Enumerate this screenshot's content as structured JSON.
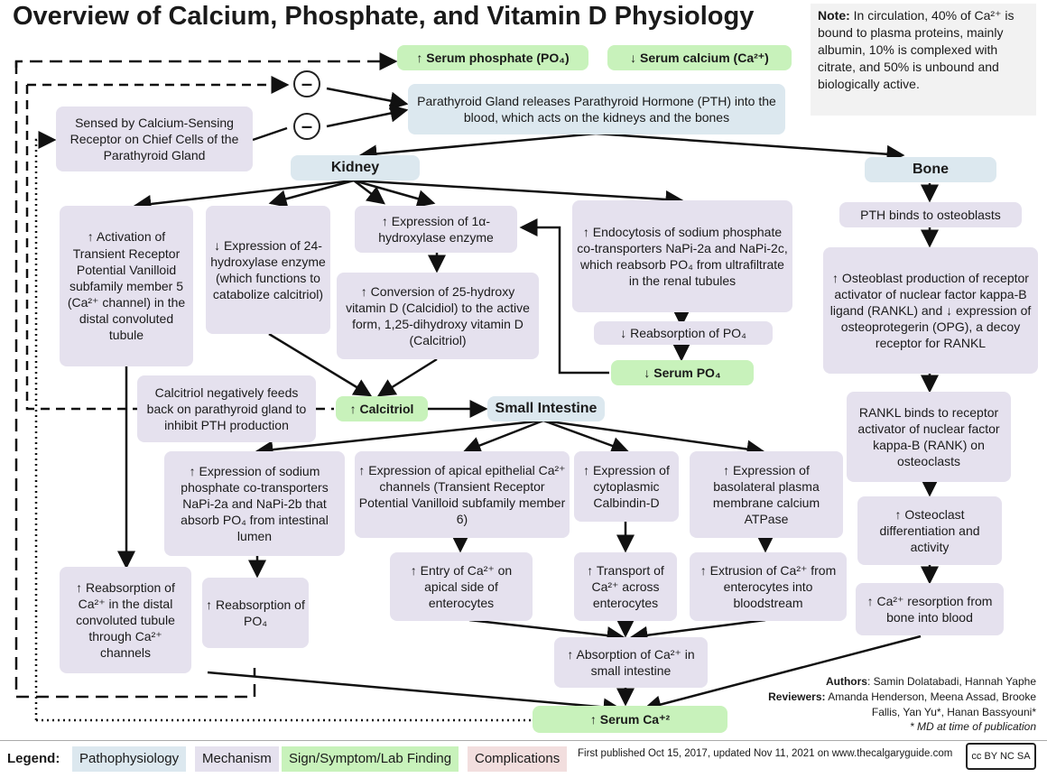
{
  "title": "Overview of Calcium, Phosphate, and Vitamin D Physiology",
  "note": {
    "label": "Note:",
    "text": "In circulation, 40% of Ca²⁺ is bound to plasma proteins, mainly albumin, 10% is complexed with citrate, and 50% is unbound and biologically active."
  },
  "top": {
    "serum_phosphate": "↑ Serum phosphate (PO₄)",
    "serum_calcium": "↓ Serum calcium (Ca²⁺)",
    "minus": "–",
    "pth": "Parathyroid Gland releases Parathyroid Hormone (PTH) into the blood, which acts on the kidneys and the bones",
    "sensed": "Sensed by Calcium-Sensing Receptor on Chief Cells of the Parathyroid Gland"
  },
  "kidney": {
    "title": "Kidney",
    "trpv5": "↑ Activation of Transient Receptor Potential Vanilloid subfamily member 5 (Ca²⁺ channel) in the distal convoluted tubule",
    "hydroxylase24": "↓ Expression of 24-hydroxylase enzyme (which functions to catabolize calcitriol)",
    "hydroxylase1a": "↑ Expression of 1α-hydroxylase enzyme",
    "conversion": "↑ Conversion of 25-hydroxy vitamin D (Calcidiol) to the active form, 1,25-dihydroxy vitamin D (Calcitriol)",
    "endocytosis": "↑ Endocytosis of sodium phosphate co-transporters NaPi-2a and NaPi-2c, which reabsorb PO₄ from ultrafiltrate in the renal tubules",
    "reabsorption_po4": "↓ Reabsorption of PO₄",
    "serum_po4": "↓ Serum PO₄",
    "reabsorption_ca": "↑ Reabsorption of Ca²⁺ in the distal convoluted tubule through Ca²⁺ channels"
  },
  "calcitriol": {
    "feedback": "Calcitriol negatively feeds back on parathyroid gland to inhibit PTH production",
    "label": "↑ Calcitriol"
  },
  "intestine": {
    "title": "Small Intestine",
    "napi": "↑ Expression of sodium phosphate co-transporters NaPi-2a and NaPi-2b that absorb PO₄ from intestinal lumen",
    "reabs_po4": "↑ Reabsorption of PO₄",
    "trpv6": "↑ Expression of apical epithelial Ca²⁺ channels (Transient Receptor Potential Vanilloid subfamily member 6)",
    "entry": "↑ Entry of Ca²⁺ on apical side of enterocytes",
    "calbindin": "↑ Expression of cytoplasmic Calbindin-D",
    "transport": "↑ Transport of Ca²⁺ across enterocytes",
    "atpase": "↑ Expression of basolateral plasma membrane calcium ATPase",
    "extrusion": "↑ Extrusion of Ca²⁺ from enterocytes into bloodstream",
    "absorption": "↑ Absorption of Ca²⁺ in small intestine"
  },
  "bone": {
    "title": "Bone",
    "binds": "PTH binds to osteoblasts",
    "rankl": "↑ Osteoblast production of receptor activator of nuclear factor kappa-B ligand (RANKL) and ↓ expression of osteoprotegerin (OPG), a decoy receptor for RANKL",
    "rank": "RANKL binds to receptor activator of nuclear factor kappa-B (RANK) on osteoclasts",
    "osteoclast": "↑ Osteoclast differentiation and activity",
    "resorption": "↑ Ca²⁺ resorption from bone into blood"
  },
  "serum_ca": "↑ Serum Ca⁺²",
  "authors": {
    "authors_label": "Authors",
    "authors": "Samin Dolatabadi, Hannah Yaphe",
    "reviewers_label": "Reviewers:",
    "reviewers": "Amanda Henderson, Meena Assad, Brooke Fallis, Yan Yu*, Hanan Bassyouni*",
    "md": "* MD at time of publication"
  },
  "legend": {
    "label": "Legend:",
    "items": [
      "Pathophysiology",
      "Mechanism",
      "Sign/Symptom/Lab Finding",
      "Complications"
    ]
  },
  "published": "First published Oct 15, 2017, updated Nov 11, 2021 on www.thecalgaryguide.com",
  "license": "cc BY NC SA"
}
